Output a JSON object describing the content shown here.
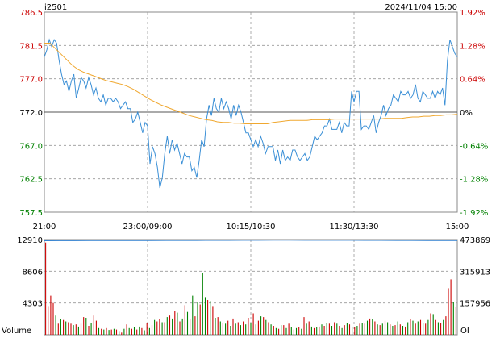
{
  "header": {
    "symbol": "i2501",
    "datetime": "2024/11/04 15:00"
  },
  "colors": {
    "up": "#cc0000",
    "down": "#008000",
    "neutral": "#000000",
    "price_line": "#3a8fd6",
    "avg_line": "#f0a830",
    "oi_line": "#2f7fcf",
    "grid": "#999999",
    "frame": "#888888"
  },
  "chart_data": [
    {
      "type": "line",
      "prev_close": 772.0,
      "ylim": [
        757.5,
        786.5
      ],
      "y_ticks": [
        {
          "label": "786.5",
          "pct": "1.92%",
          "dir": "up"
        },
        {
          "label": "781.5",
          "pct": "1.28%",
          "dir": "up"
        },
        {
          "label": "777.0",
          "pct": "0.64%",
          "dir": "up"
        },
        {
          "label": "772.0",
          "pct": "0%",
          "dir": "flat"
        },
        {
          "label": "767.0",
          "pct": "-0.64%",
          "dir": "down"
        },
        {
          "label": "762.5",
          "pct": "-1.28%",
          "dir": "down"
        },
        {
          "label": "757.5",
          "pct": "-1.92%",
          "dir": "down"
        }
      ],
      "x_ticks": [
        "21:00",
        "23:00/09:00",
        "10:15/10:30",
        "11:30/13:30",
        "15:00"
      ],
      "grid": true,
      "series": [
        {
          "kind": "price",
          "values": [
            780.0,
            781.0,
            782.5,
            781.5,
            782.5,
            782.0,
            779.5,
            777.5,
            776.0,
            776.5,
            775.0,
            776.5,
            777.5,
            774.0,
            775.5,
            777.0,
            776.5,
            775.5,
            777.0,
            776.0,
            774.5,
            775.5,
            774.0,
            773.5,
            774.5,
            773.0,
            774.0,
            774.0,
            773.5,
            774.0,
            773.5,
            772.5,
            773.0,
            773.5,
            772.5,
            772.5,
            770.5,
            771.0,
            772.0,
            770.5,
            769.0,
            770.5,
            770.0,
            764.5,
            767.0,
            766.0,
            764.0,
            761.0,
            762.5,
            766.0,
            768.5,
            766.0,
            768.0,
            766.5,
            767.5,
            766.0,
            764.5,
            766.0,
            765.5,
            765.5,
            763.5,
            764.0,
            762.5,
            765.0,
            768.0,
            767.0,
            771.0,
            773.0,
            771.5,
            774.0,
            772.5,
            772.0,
            774.0,
            772.5,
            773.5,
            772.5,
            771.0,
            773.0,
            771.5,
            773.0,
            772.0,
            770.5,
            769.0,
            769.0,
            768.0,
            767.0,
            768.0,
            767.0,
            768.5,
            767.5,
            766.0,
            767.0,
            767.0,
            767.0,
            765.0,
            766.5,
            764.5,
            766.5,
            765.0,
            765.5,
            765.0,
            766.5,
            766.5,
            765.5,
            765.0,
            765.5,
            766.0,
            765.0,
            765.5,
            767.0,
            768.5,
            768.0,
            768.5,
            769.0,
            770.0,
            770.0,
            771.0,
            769.5,
            769.5,
            769.5,
            770.5,
            769.0,
            770.5,
            770.0,
            770.0,
            775.0,
            773.5,
            775.0,
            775.0,
            769.5,
            770.0,
            770.0,
            769.5,
            770.5,
            771.5,
            769.0,
            770.5,
            771.5,
            773.0,
            771.5,
            772.5,
            773.0,
            774.5,
            774.0,
            773.5,
            775.0,
            774.5,
            774.5,
            775.0,
            774.0,
            774.5,
            776.0,
            774.0,
            773.5,
            775.0,
            774.5,
            774.0,
            774.0,
            775.0,
            774.0,
            775.0,
            774.5,
            775.5,
            773.0,
            779.5,
            782.5,
            781.5,
            780.5,
            780.0
          ]
        },
        {
          "kind": "average",
          "values": [
            782.0,
            782.0,
            781.2,
            780.4,
            779.6,
            778.8,
            778.2,
            777.8,
            777.5,
            777.2,
            776.9,
            776.6,
            776.4,
            776.2,
            776.0,
            775.7,
            775.3,
            774.8,
            774.3,
            773.8,
            773.4,
            773.0,
            772.7,
            772.4,
            772.1,
            771.8,
            771.5,
            771.3,
            771.1,
            770.9,
            770.8,
            770.6,
            770.5,
            770.5,
            770.4,
            770.4,
            770.3,
            770.3,
            770.3,
            770.3,
            770.3,
            770.5,
            770.6,
            770.7,
            770.8,
            770.8,
            770.8,
            770.8,
            770.9,
            770.9,
            770.9,
            770.9,
            771.0,
            771.0,
            771.0,
            771.0,
            771.0,
            771.0,
            771.0,
            771.0,
            771.0,
            771.1,
            771.1,
            771.1,
            771.1,
            771.2,
            771.3,
            771.3,
            771.4,
            771.4,
            771.5,
            771.5,
            771.6,
            771.6,
            771.7
          ]
        }
      ]
    },
    {
      "type": "bar",
      "ylabel": "Volume",
      "y_ticks": [
        "12910",
        "8606",
        "4303"
      ],
      "oi_ticks": [
        "473869",
        "315913",
        "157956"
      ],
      "oi_label": "OI",
      "volume_max": 12910,
      "oi_min": 0,
      "oi_max": 473869,
      "open_interest": [
        468000,
        468100,
        468300,
        468500,
        468700,
        468800,
        469000,
        469200,
        469300,
        469400,
        469600,
        469800,
        470000,
        470100,
        470300,
        470500,
        470500,
        470400,
        470300,
        470200,
        470100,
        470000,
        469800,
        469600,
        469400,
        469200,
        469000,
        468800
      ],
      "volumes": [
        {
          "v": 12500,
          "d": "up"
        },
        {
          "v": 3900,
          "d": "up"
        },
        {
          "v": 5300,
          "d": "up"
        },
        {
          "v": 4300,
          "d": "up"
        },
        {
          "v": 2600,
          "d": "down"
        },
        {
          "v": 1500,
          "d": "up"
        },
        {
          "v": 2100,
          "d": "down"
        },
        {
          "v": 2000,
          "d": "up"
        },
        {
          "v": 1800,
          "d": "down"
        },
        {
          "v": 1700,
          "d": "up"
        },
        {
          "v": 1500,
          "d": "up"
        },
        {
          "v": 1300,
          "d": "down"
        },
        {
          "v": 1400,
          "d": "up"
        },
        {
          "v": 1100,
          "d": "down"
        },
        {
          "v": 1500,
          "d": "up"
        },
        {
          "v": 2400,
          "d": "up"
        },
        {
          "v": 2300,
          "d": "down"
        },
        {
          "v": 1200,
          "d": "up"
        },
        {
          "v": 1600,
          "d": "down"
        },
        {
          "v": 2600,
          "d": "up"
        },
        {
          "v": 1900,
          "d": "up"
        },
        {
          "v": 900,
          "d": "down"
        },
        {
          "v": 800,
          "d": "up"
        },
        {
          "v": 700,
          "d": "down"
        },
        {
          "v": 900,
          "d": "up"
        },
        {
          "v": 650,
          "d": "down"
        },
        {
          "v": 700,
          "d": "up"
        },
        {
          "v": 800,
          "d": "down"
        },
        {
          "v": 700,
          "d": "up"
        },
        {
          "v": 500,
          "d": "down"
        },
        {
          "v": 300,
          "d": "up"
        },
        {
          "v": 800,
          "d": "down"
        },
        {
          "v": 1400,
          "d": "up"
        },
        {
          "v": 900,
          "d": "down"
        },
        {
          "v": 800,
          "d": "up"
        },
        {
          "v": 1000,
          "d": "down"
        },
        {
          "v": 700,
          "d": "up"
        },
        {
          "v": 1100,
          "d": "down"
        },
        {
          "v": 900,
          "d": "up"
        },
        {
          "v": 600,
          "d": "down"
        },
        {
          "v": 1600,
          "d": "up"
        },
        {
          "v": 900,
          "d": "down"
        },
        {
          "v": 1300,
          "d": "up"
        },
        {
          "v": 2000,
          "d": "down"
        },
        {
          "v": 1800,
          "d": "up"
        },
        {
          "v": 2100,
          "d": "up"
        },
        {
          "v": 1700,
          "d": "down"
        },
        {
          "v": 1700,
          "d": "up"
        },
        {
          "v": 2400,
          "d": "down"
        },
        {
          "v": 2600,
          "d": "up"
        },
        {
          "v": 2200,
          "d": "down"
        },
        {
          "v": 3200,
          "d": "up"
        },
        {
          "v": 3000,
          "d": "down"
        },
        {
          "v": 1800,
          "d": "up"
        },
        {
          "v": 2200,
          "d": "down"
        },
        {
          "v": 4000,
          "d": "up"
        },
        {
          "v": 3100,
          "d": "down"
        },
        {
          "v": 2100,
          "d": "up"
        },
        {
          "v": 5300,
          "d": "down"
        },
        {
          "v": 2500,
          "d": "up"
        },
        {
          "v": 4400,
          "d": "down"
        },
        {
          "v": 4100,
          "d": "up"
        },
        {
          "v": 8400,
          "d": "down"
        },
        {
          "v": 5100,
          "d": "down"
        },
        {
          "v": 4700,
          "d": "up"
        },
        {
          "v": 4600,
          "d": "down"
        },
        {
          "v": 3900,
          "d": "up"
        },
        {
          "v": 2300,
          "d": "down"
        },
        {
          "v": 2400,
          "d": "up"
        },
        {
          "v": 1800,
          "d": "down"
        },
        {
          "v": 1600,
          "d": "up"
        },
        {
          "v": 1500,
          "d": "down"
        },
        {
          "v": 1900,
          "d": "up"
        },
        {
          "v": 1200,
          "d": "down"
        },
        {
          "v": 2200,
          "d": "up"
        },
        {
          "v": 1500,
          "d": "down"
        },
        {
          "v": 1700,
          "d": "up"
        },
        {
          "v": 1300,
          "d": "down"
        },
        {
          "v": 1800,
          "d": "up"
        },
        {
          "v": 1400,
          "d": "down"
        },
        {
          "v": 2300,
          "d": "up"
        },
        {
          "v": 1600,
          "d": "down"
        },
        {
          "v": 2900,
          "d": "up"
        },
        {
          "v": 1400,
          "d": "down"
        },
        {
          "v": 1900,
          "d": "up"
        },
        {
          "v": 2500,
          "d": "down"
        },
        {
          "v": 2400,
          "d": "up"
        },
        {
          "v": 2000,
          "d": "down"
        },
        {
          "v": 1700,
          "d": "up"
        },
        {
          "v": 1400,
          "d": "down"
        },
        {
          "v": 1200,
          "d": "up"
        },
        {
          "v": 900,
          "d": "down"
        },
        {
          "v": 800,
          "d": "up"
        },
        {
          "v": 1300,
          "d": "down"
        },
        {
          "v": 1300,
          "d": "up"
        },
        {
          "v": 900,
          "d": "down"
        },
        {
          "v": 1500,
          "d": "up"
        },
        {
          "v": 1000,
          "d": "down"
        },
        {
          "v": 700,
          "d": "up"
        },
        {
          "v": 900,
          "d": "down"
        },
        {
          "v": 1000,
          "d": "up"
        },
        {
          "v": 800,
          "d": "down"
        },
        {
          "v": 2400,
          "d": "up"
        },
        {
          "v": 1500,
          "d": "down"
        },
        {
          "v": 1800,
          "d": "up"
        },
        {
          "v": 1100,
          "d": "down"
        },
        {
          "v": 900,
          "d": "up"
        },
        {
          "v": 1000,
          "d": "down"
        },
        {
          "v": 1100,
          "d": "up"
        },
        {
          "v": 1400,
          "d": "down"
        },
        {
          "v": 1200,
          "d": "up"
        },
        {
          "v": 1600,
          "d": "down"
        },
        {
          "v": 1500,
          "d": "up"
        },
        {
          "v": 1200,
          "d": "down"
        },
        {
          "v": 1700,
          "d": "up"
        },
        {
          "v": 1500,
          "d": "down"
        },
        {
          "v": 1200,
          "d": "up"
        },
        {
          "v": 900,
          "d": "down"
        },
        {
          "v": 1300,
          "d": "up"
        },
        {
          "v": 1600,
          "d": "down"
        },
        {
          "v": 1400,
          "d": "up"
        },
        {
          "v": 1100,
          "d": "down"
        },
        {
          "v": 1000,
          "d": "up"
        },
        {
          "v": 1200,
          "d": "down"
        },
        {
          "v": 1500,
          "d": "up"
        },
        {
          "v": 1600,
          "d": "down"
        },
        {
          "v": 1500,
          "d": "up"
        },
        {
          "v": 1900,
          "d": "down"
        },
        {
          "v": 2200,
          "d": "up"
        },
        {
          "v": 2100,
          "d": "down"
        },
        {
          "v": 1800,
          "d": "up"
        },
        {
          "v": 1400,
          "d": "down"
        },
        {
          "v": 1300,
          "d": "up"
        },
        {
          "v": 1500,
          "d": "down"
        },
        {
          "v": 1900,
          "d": "up"
        },
        {
          "v": 1700,
          "d": "down"
        },
        {
          "v": 1400,
          "d": "up"
        },
        {
          "v": 1200,
          "d": "down"
        },
        {
          "v": 1300,
          "d": "up"
        },
        {
          "v": 1800,
          "d": "down"
        },
        {
          "v": 1400,
          "d": "up"
        },
        {
          "v": 1200,
          "d": "down"
        },
        {
          "v": 1100,
          "d": "up"
        },
        {
          "v": 1700,
          "d": "down"
        },
        {
          "v": 2100,
          "d": "up"
        },
        {
          "v": 1900,
          "d": "down"
        },
        {
          "v": 1500,
          "d": "up"
        },
        {
          "v": 1800,
          "d": "down"
        },
        {
          "v": 2000,
          "d": "up"
        },
        {
          "v": 1600,
          "d": "down"
        },
        {
          "v": 1500,
          "d": "up"
        },
        {
          "v": 2000,
          "d": "down"
        },
        {
          "v": 2900,
          "d": "up"
        },
        {
          "v": 2800,
          "d": "down"
        },
        {
          "v": 2000,
          "d": "up"
        },
        {
          "v": 1700,
          "d": "down"
        },
        {
          "v": 1600,
          "d": "up"
        },
        {
          "v": 2000,
          "d": "down"
        },
        {
          "v": 2500,
          "d": "up"
        },
        {
          "v": 6300,
          "d": "up"
        },
        {
          "v": 7500,
          "d": "up"
        },
        {
          "v": 4400,
          "d": "down"
        },
        {
          "v": 3800,
          "d": "up"
        }
      ]
    }
  ]
}
